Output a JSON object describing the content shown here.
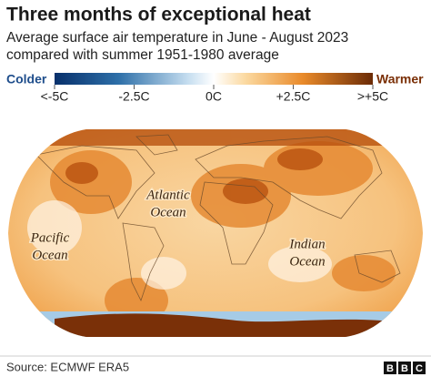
{
  "header": {
    "title": "Three months of exceptional heat",
    "subtitle": [
      "Average surface air temperature in June - August 2023",
      "compared with summer 1951-1980 average"
    ]
  },
  "legend": {
    "low_label": "Colder",
    "high_label": "Warmer",
    "ticks": [
      "<-5C",
      "-2.5C",
      "0C",
      "+2.5C",
      ">+5C"
    ]
  },
  "map": {
    "labels": [
      {
        "lines": [
          "Atlantic",
          "Ocean"
        ]
      },
      {
        "lines": [
          "Pacific",
          "Ocean"
        ]
      },
      {
        "lines": [
          "Indian",
          "Ocean"
        ]
      }
    ]
  },
  "footer": {
    "source": "Source: ECMWF ERA5",
    "logo": [
      "B",
      "B",
      "C"
    ]
  }
}
